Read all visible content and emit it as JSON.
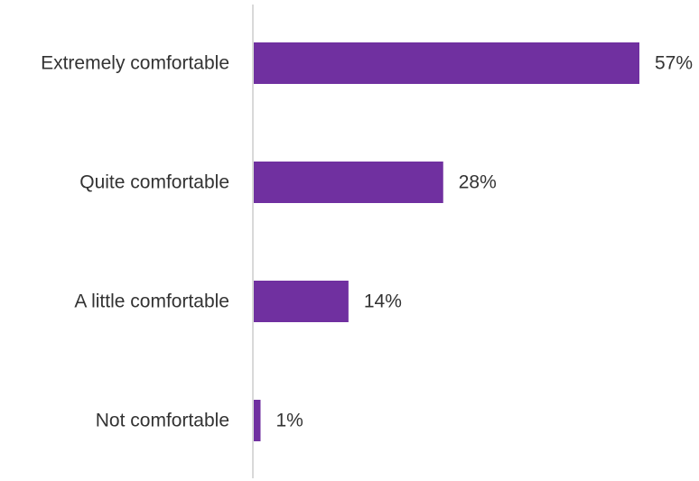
{
  "chart_data": {
    "type": "bar",
    "orientation": "horizontal",
    "categories": [
      "Extremely comfortable",
      "Quite comfortable",
      "A little comfortable",
      "Not comfortable"
    ],
    "values": [
      57,
      28,
      14,
      1
    ],
    "value_labels": [
      "57%",
      "28%",
      "14%",
      "1%"
    ],
    "unit": "%",
    "xlim": [
      0,
      57
    ],
    "grid": false,
    "legend": "none",
    "bar_color": "#7030A0",
    "axis_color": "#D9D9D9",
    "text_color": "#333333"
  }
}
